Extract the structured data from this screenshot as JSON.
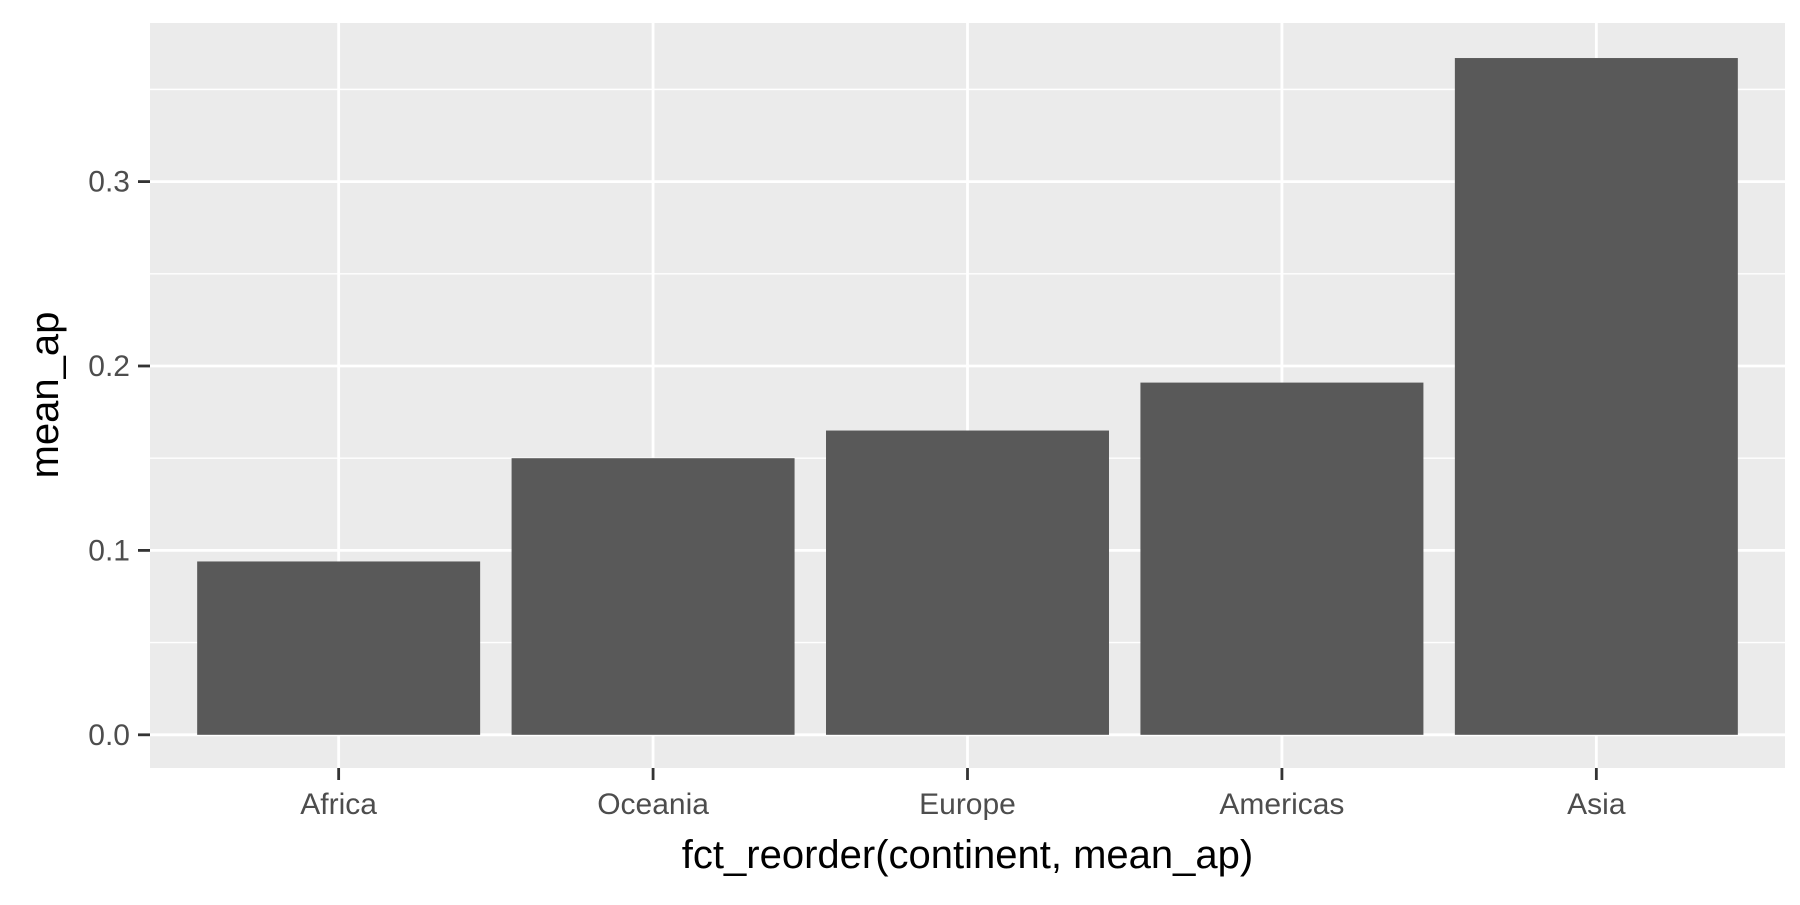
{
  "chart_data": {
    "type": "bar",
    "title": "",
    "xlabel": "fct_reorder(continent, mean_ap)",
    "ylabel": "mean_ap",
    "categories": [
      "Africa",
      "Oceania",
      "Europe",
      "Americas",
      "Asia"
    ],
    "values": [
      0.094,
      0.15,
      0.165,
      0.191,
      0.367
    ],
    "ylim": [
      -0.018,
      0.386
    ],
    "yticks": [
      0.0,
      0.1,
      0.2,
      0.3
    ],
    "ytick_labels": [
      "0.0",
      "0.1",
      "0.2",
      "0.3"
    ],
    "grid": true,
    "legend": "none",
    "colors": {
      "bar": "#595959",
      "panel": "#ebebeb",
      "grid": "#ffffff",
      "tick": "#333333"
    }
  }
}
